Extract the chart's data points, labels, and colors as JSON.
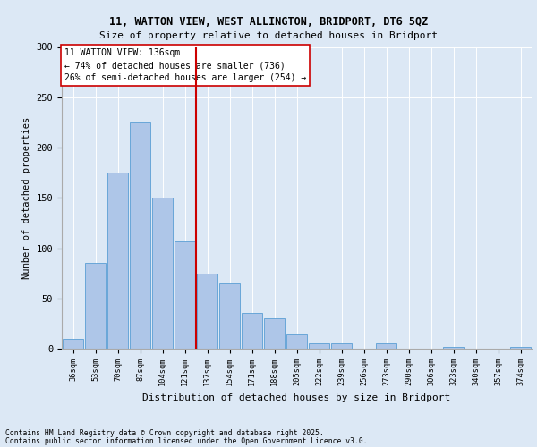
{
  "title1": "11, WATTON VIEW, WEST ALLINGTON, BRIDPORT, DT6 5QZ",
  "title2": "Size of property relative to detached houses in Bridport",
  "xlabel": "Distribution of detached houses by size in Bridport",
  "ylabel": "Number of detached properties",
  "categories": [
    "36sqm",
    "53sqm",
    "70sqm",
    "87sqm",
    "104sqm",
    "121sqm",
    "137sqm",
    "154sqm",
    "171sqm",
    "188sqm",
    "205sqm",
    "222sqm",
    "239sqm",
    "256sqm",
    "273sqm",
    "290sqm",
    "306sqm",
    "323sqm",
    "340sqm",
    "357sqm",
    "374sqm"
  ],
  "values": [
    10,
    85,
    175,
    225,
    150,
    107,
    75,
    65,
    36,
    30,
    14,
    5,
    5,
    0,
    5,
    0,
    0,
    2,
    0,
    0,
    2
  ],
  "bar_color": "#aec6e8",
  "bar_edge_color": "#5a9fd4",
  "vline_x_index": 6,
  "vline_color": "#cc0000",
  "annotation_text": "11 WATTON VIEW: 136sqm\n← 74% of detached houses are smaller (736)\n26% of semi-detached houses are larger (254) →",
  "annotation_box_color": "#ffffff",
  "annotation_box_edge": "#cc0000",
  "footer1": "Contains HM Land Registry data © Crown copyright and database right 2025.",
  "footer2": "Contains public sector information licensed under the Open Government Licence v3.0.",
  "background_color": "#dce8f5",
  "plot_bg_color": "#dce8f5",
  "ylim": [
    0,
    300
  ],
  "yticks": [
    0,
    50,
    100,
    150,
    200,
    250,
    300
  ]
}
